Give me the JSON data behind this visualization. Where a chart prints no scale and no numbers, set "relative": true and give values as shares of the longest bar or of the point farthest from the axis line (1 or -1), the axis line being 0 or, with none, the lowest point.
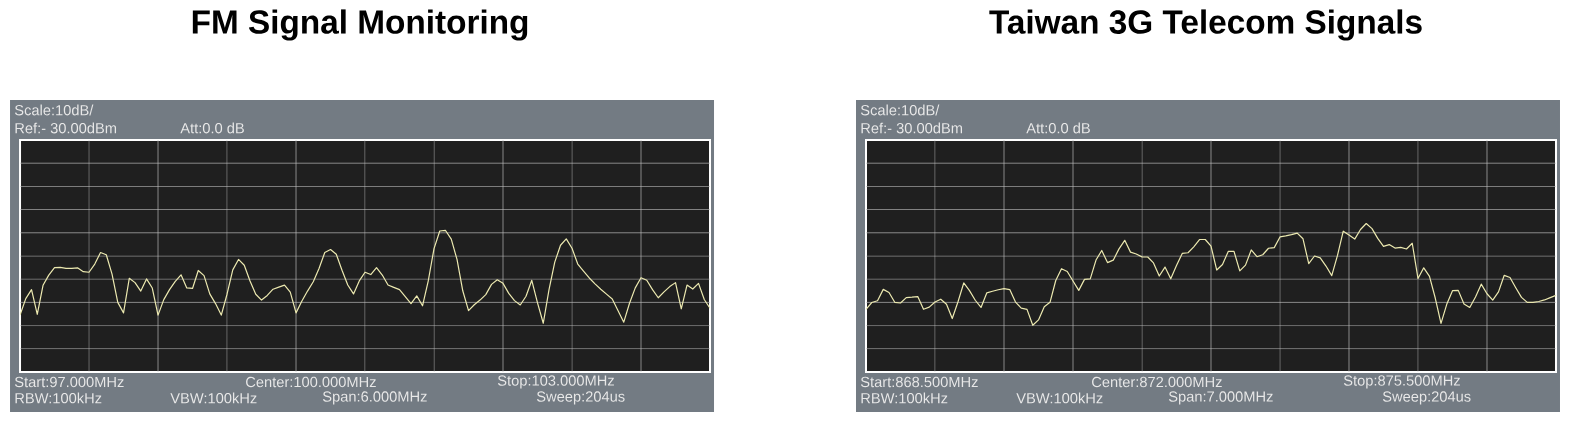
{
  "chart_data": [
    {
      "type": "line",
      "title": "FM Signal Monitoring",
      "relative": true,
      "annotations": [
        "Scale:10dB/",
        "Ref:- 30.00dBm",
        "Att:0.0 dB",
        "Start:97.000MHz",
        "Center:100.000MHz",
        "Stop:103.000MHz",
        "RBW:100kHz",
        "VBW:100kHz",
        "Span:6.000MHz",
        "Sweep:204us"
      ],
      "categories": [
        null,
        null,
        null,
        null,
        null,
        null,
        null,
        null,
        null,
        null,
        null,
        null,
        null,
        null,
        null,
        null,
        null,
        null,
        null,
        null,
        null,
        null,
        null,
        null,
        null,
        null,
        null,
        null,
        null,
        null,
        null,
        null,
        null,
        null,
        null,
        null,
        null,
        null,
        null,
        null,
        null,
        null,
        null,
        null,
        null,
        null,
        null,
        null,
        null,
        null,
        null,
        null,
        null,
        null,
        null,
        null,
        null,
        null,
        null,
        null,
        null,
        null,
        null,
        null,
        null,
        null,
        null,
        null,
        null,
        null,
        null,
        null,
        null,
        null,
        null,
        null,
        null,
        null,
        null,
        null,
        null,
        null,
        null,
        null,
        null,
        null,
        null,
        null,
        null,
        null,
        null,
        null,
        null,
        null,
        null,
        null,
        null,
        null,
        null,
        null,
        null,
        null,
        null,
        null,
        null,
        null,
        null,
        null,
        null,
        null,
        null,
        null,
        null,
        null,
        null,
        null,
        null,
        null,
        null,
        null,
        null
      ],
      "values": [
        0.088,
        0.266,
        0.362,
        0.097,
        0.409,
        0.519,
        0.6,
        0.603,
        0.591,
        0.592,
        0.597,
        0.556,
        0.55,
        0.638,
        0.762,
        0.738,
        0.53,
        0.225,
        0.112,
        0.484,
        0.438,
        0.347,
        0.478,
        0.38,
        0.088,
        0.255,
        0.362,
        0.452,
        0.522,
        0.381,
        0.375,
        0.569,
        0.513,
        0.317,
        0.212,
        0.088,
        0.313,
        0.575,
        0.688,
        0.625,
        0.455,
        0.313,
        0.25,
        0.3,
        0.367,
        0.389,
        0.411,
        0.336,
        0.112,
        0.238,
        0.347,
        0.447,
        0.591,
        0.762,
        0.794,
        0.744,
        0.572,
        0.412,
        0.316,
        0.456,
        0.55,
        0.525,
        0.6,
        0.52,
        0.412,
        0.387,
        0.362,
        0.288,
        0.212,
        0.295,
        0.188,
        0.458,
        0.805,
        0.994,
        1,
        0.906,
        0.688,
        0.35,
        0.137,
        0.2,
        0.25,
        0.309,
        0.419,
        0.469,
        0.43,
        0.322,
        0.244,
        0.197,
        0.291,
        0.463,
        0.219,
        0,
        0.362,
        0.659,
        0.841,
        0.909,
        0.808,
        0.638,
        0.562,
        0.488,
        0.425,
        0.367,
        0.314,
        0.262,
        0.137,
        0.012,
        0.216,
        0.381,
        0.491,
        0.463,
        0.362,
        0.275,
        0.338,
        0.395,
        0.438,
        0.156,
        0.412,
        0.369,
        0.43,
        0.256,
        0.162
      ],
      "color": "#ece9b0",
      "grid": true
    },
    {
      "type": "line",
      "title": "Taiwan 3G Telecom Signals",
      "relative": true,
      "annotations": [
        "Scale:10dB/",
        "Ref:- 30.00dBm",
        "Att:0.0 dB",
        "Start:868.500MHz",
        "Center:872.000MHz",
        "Stop:875.500MHz",
        "RBW:100kHz",
        "VBW:100kHz",
        "Span:7.000MHz",
        "Sweep:204us"
      ],
      "categories": [
        null,
        null,
        null,
        null,
        null,
        null,
        null,
        null,
        null,
        null,
        null,
        null,
        null,
        null,
        null,
        null,
        null,
        null,
        null,
        null,
        null,
        null,
        null,
        null,
        null,
        null,
        null,
        null,
        null,
        null,
        null,
        null,
        null,
        null,
        null,
        null,
        null,
        null,
        null,
        null,
        null,
        null,
        null,
        null,
        null,
        null,
        null,
        null,
        null,
        null,
        null,
        null,
        null,
        null,
        null,
        null,
        null,
        null,
        null,
        null,
        null,
        null,
        null,
        null,
        null,
        null,
        null,
        null,
        null,
        null,
        null,
        null,
        null,
        null,
        null,
        null,
        null,
        null,
        null,
        null,
        null,
        null,
        null,
        null,
        null,
        null,
        null,
        null,
        null,
        null,
        null,
        null,
        null,
        null,
        null,
        null,
        null,
        null,
        null,
        null,
        null,
        null,
        null,
        null,
        null,
        null,
        null,
        null,
        null,
        null,
        null,
        null,
        null,
        null,
        null,
        null,
        null,
        null,
        null,
        null,
        null
      ],
      "values": [
        0.157,
        0.224,
        0.241,
        0.353,
        0.322,
        0.226,
        0.219,
        0.272,
        0.276,
        0.282,
        0.157,
        0.178,
        0.229,
        0.256,
        0.206,
        0.066,
        0.231,
        0.416,
        0.341,
        0.246,
        0.175,
        0.318,
        0.334,
        0.349,
        0.36,
        0.351,
        0.228,
        0.169,
        0.156,
        0,
        0.053,
        0.182,
        0.226,
        0.44,
        0.556,
        0.529,
        0.435,
        0.343,
        0.451,
        0.456,
        0.641,
        0.735,
        0.616,
        0.64,
        0.751,
        0.835,
        0.719,
        0.7,
        0.672,
        0.671,
        0.613,
        0.484,
        0.572,
        0.457,
        0.587,
        0.706,
        0.713,
        0.771,
        0.843,
        0.843,
        0.778,
        0.543,
        0.597,
        0.726,
        0.726,
        0.534,
        0.591,
        0.74,
        0.674,
        0.693,
        0.757,
        0.763,
        0.868,
        0.878,
        0.891,
        0.906,
        0.85,
        0.606,
        0.681,
        0.662,
        0.582,
        0.488,
        0.687,
        0.925,
        0.887,
        0.847,
        0.941,
        1,
        0.95,
        0.854,
        0.775,
        0.793,
        0.759,
        0.765,
        0.75,
        0.806,
        0.46,
        0.565,
        0.481,
        0.268,
        0.018,
        0.206,
        0.34,
        0.343,
        0.21,
        0.175,
        0.278,
        0.404,
        0.31,
        0.247,
        0.328,
        0.491,
        0.469,
        0.369,
        0.274,
        0.225,
        0.225,
        0.234,
        0.249,
        0.272,
        0.294
      ],
      "color": "#ece9b0",
      "grid": true
    }
  ]
}
